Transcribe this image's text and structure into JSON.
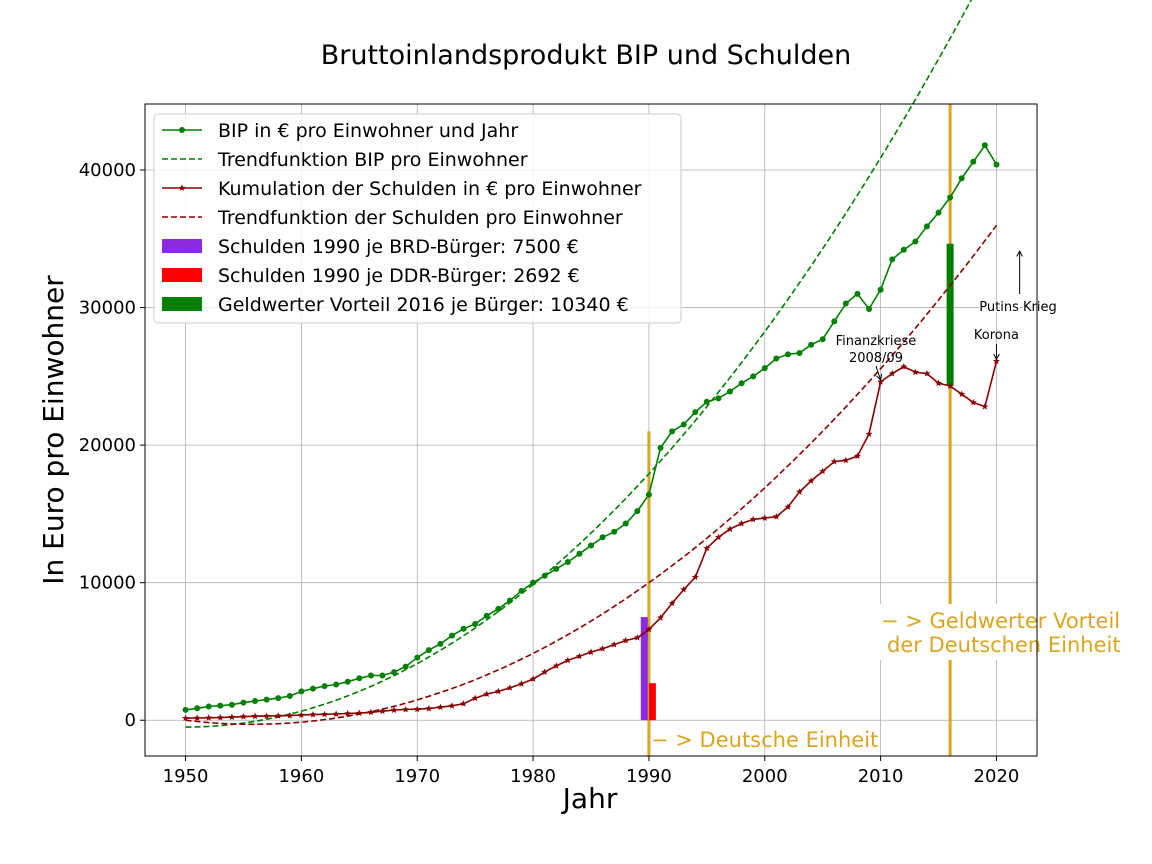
{
  "chart_data": {
    "type": "line",
    "title": "Bruttoinlandsprodukt BIP und Schulden",
    "xlabel": "Jahr",
    "ylabel": "In Euro pro Einwohner",
    "xlim": [
      1946.5,
      2023.5
    ],
    "ylim": [
      -2600,
      44800
    ],
    "xticks": [
      1950,
      1960,
      1970,
      1980,
      1990,
      2000,
      2010,
      2020
    ],
    "yticks": [
      0,
      10000,
      20000,
      30000,
      40000
    ],
    "grid": true,
    "legend_position": "top-left",
    "colors": {
      "bip": "#008000",
      "debt": "#8b0000",
      "purple": "#8a2be2",
      "red": "#ff0000",
      "green_bar": "#008000",
      "gold": "#daa520"
    },
    "series": [
      {
        "name": "BIP in € pro Einwohner und Jahr",
        "marker": "circle",
        "x": [
          1950,
          1951,
          1952,
          1953,
          1954,
          1955,
          1956,
          1957,
          1958,
          1959,
          1960,
          1961,
          1962,
          1963,
          1964,
          1965,
          1966,
          1967,
          1968,
          1969,
          1970,
          1971,
          1972,
          1973,
          1974,
          1975,
          1976,
          1977,
          1978,
          1979,
          1980,
          1981,
          1982,
          1983,
          1984,
          1985,
          1986,
          1987,
          1988,
          1989,
          1990,
          1991,
          1992,
          1993,
          1994,
          1995,
          1996,
          1997,
          1998,
          1999,
          2000,
          2001,
          2002,
          2003,
          2004,
          2005,
          2006,
          2007,
          2008,
          2009,
          2010,
          2011,
          2012,
          2013,
          2014,
          2015,
          2016,
          2017,
          2018,
          2019,
          2020
        ],
        "y": [
          750,
          870,
          1000,
          1060,
          1130,
          1280,
          1400,
          1500,
          1610,
          1760,
          2100,
          2300,
          2480,
          2600,
          2800,
          3050,
          3250,
          3250,
          3500,
          3900,
          4550,
          5100,
          5550,
          6150,
          6650,
          7000,
          7600,
          8100,
          8700,
          9400,
          10000,
          10500,
          11000,
          11500,
          12100,
          12700,
          13300,
          13700,
          14300,
          15200,
          16400,
          19800,
          21000,
          21500,
          22400,
          23150,
          23400,
          23900,
          24500,
          25000,
          25600,
          26300,
          26600,
          26700,
          27300,
          27700,
          29000,
          30300,
          31000,
          29900,
          31300,
          33500,
          34200,
          34800,
          35900,
          36900,
          38000,
          39400,
          40600,
          41800,
          40400
        ]
      },
      {
        "name": "Trendfunktion BIP pro Einwohner",
        "style": "dashed",
        "fit": {
          "a": 11.47,
          "b": 1.6,
          "c": -500
        },
        "x_range": [
          1950,
          2020
        ]
      },
      {
        "name": "Kumulation der Schulden in € pro Einwohner",
        "marker": "star",
        "x": [
          1950,
          1951,
          1952,
          1953,
          1954,
          1955,
          1956,
          1957,
          1958,
          1959,
          1960,
          1961,
          1962,
          1963,
          1964,
          1965,
          1966,
          1967,
          1968,
          1969,
          1970,
          1971,
          1972,
          1973,
          1974,
          1975,
          1976,
          1977,
          1978,
          1979,
          1980,
          1981,
          1982,
          1983,
          1984,
          1985,
          1986,
          1987,
          1988,
          1989,
          1990,
          1991,
          1992,
          1993,
          1994,
          1995,
          1996,
          1997,
          1998,
          1999,
          2000,
          2001,
          2002,
          2003,
          2004,
          2005,
          2006,
          2007,
          2008,
          2009,
          2010,
          2011,
          2012,
          2013,
          2014,
          2015,
          2016,
          2017,
          2018,
          2019,
          2020
        ],
        "y": [
          150,
          160,
          175,
          190,
          230,
          260,
          290,
          300,
          320,
          340,
          380,
          410,
          430,
          450,
          480,
          520,
          580,
          660,
          740,
          780,
          800,
          850,
          950,
          1050,
          1200,
          1600,
          1900,
          2100,
          2350,
          2650,
          3000,
          3500,
          3950,
          4350,
          4650,
          4950,
          5200,
          5500,
          5800,
          6000,
          6600,
          7450,
          8500,
          9500,
          10400,
          12500,
          13300,
          13900,
          14300,
          14600,
          14700,
          14800,
          15500,
          16600,
          17400,
          18100,
          18800,
          18900,
          19200,
          20800,
          24600,
          25200,
          25700,
          25300,
          25200,
          24500,
          24300,
          23700,
          23100,
          22800,
          26100
        ]
      },
      {
        "name": "Trendfunktion der Schulden pro Einwohner",
        "style": "dashed",
        "fit": {
          "a": 8.8,
          "b": -102,
          "c": 0
        },
        "x_range": [
          1950,
          2020
        ]
      }
    ],
    "bars": [
      {
        "name": "Schulden 1990 je BRD-Bürger: 7500 €",
        "x": 1989.6,
        "value": 7500,
        "color": "#8a2be2"
      },
      {
        "name": "Schulden 1990 je DDR-Bürger: 2692 €",
        "x": 1990.3,
        "value": 2692,
        "color": "#ff0000"
      },
      {
        "name": "Geldwerter Vorteil 2016 je Bürger: 10340 €",
        "x": 2016.0,
        "bottom": 24300,
        "value": 10340,
        "color": "#008000"
      }
    ],
    "vlines": [
      {
        "x": 1990,
        "y0": -2600,
        "y1": 21000,
        "color": "#daa520"
      },
      {
        "x": 2016,
        "y0": -2600,
        "y1": 44800,
        "color": "#daa520"
      }
    ],
    "annotations": [
      {
        "text": "Finanzkriese",
        "text2": "2008/09",
        "x": 2009.6,
        "y": 26200,
        "arrow_to": [
          2010,
          24600
        ]
      },
      {
        "text": "Putins Krieg",
        "x": 2022,
        "y": 30100,
        "arrow_to": [
          2022,
          34100
        ],
        "arrow_dir": "up"
      },
      {
        "text": "Korona",
        "x": 2020,
        "y": 27700,
        "arrow_to": [
          2020,
          26100
        ]
      },
      {
        "text": "− > Deutsche Einheit",
        "x": 1990.1,
        "y": -1400,
        "color": "#daa520",
        "big": true
      },
      {
        "text": "− > Geldwerter Vorteil",
        "text2": "der Deutschen Einheit",
        "x": 2010.1,
        "y": 7200,
        "color": "#daa520",
        "big": true
      }
    ]
  }
}
